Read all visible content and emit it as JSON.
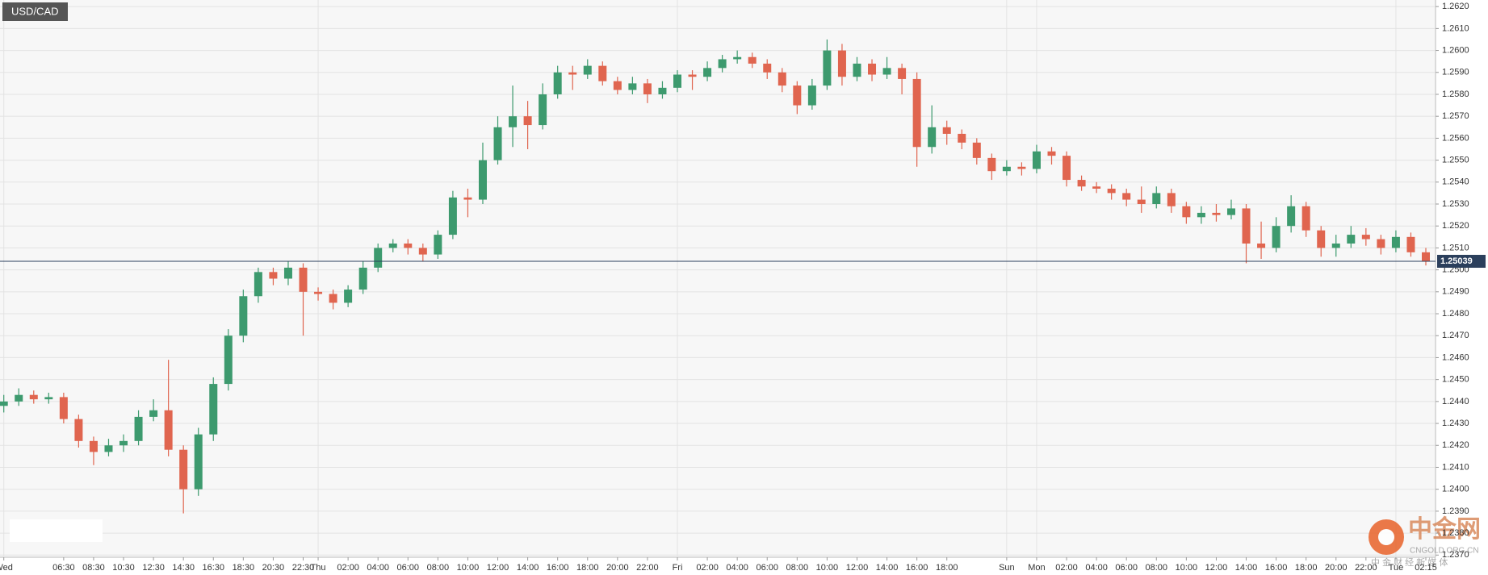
{
  "chart_data": {
    "type": "candlestick",
    "title": "USD/CAD",
    "categories": [
      "Wed",
      null,
      null,
      null,
      "06:30",
      null,
      "08:30",
      null,
      "10:30",
      null,
      "12:30",
      null,
      "14:30",
      null,
      "16:30",
      null,
      "18:30",
      null,
      "20:30",
      null,
      "22:30",
      "Thu",
      null,
      "02:00",
      null,
      "04:00",
      null,
      "06:00",
      null,
      "08:00",
      null,
      "10:00",
      null,
      "12:00",
      null,
      "14:00",
      null,
      "16:00",
      null,
      "18:00",
      null,
      "20:00",
      null,
      "22:00",
      null,
      "Fri",
      null,
      "02:00",
      null,
      "04:00",
      null,
      "06:00",
      null,
      "08:00",
      null,
      "10:00",
      null,
      "12:00",
      null,
      "14:00",
      null,
      "16:00",
      null,
      "18:00",
      null,
      null,
      null,
      "Sun",
      null,
      "Mon",
      null,
      "02:00",
      null,
      "04:00",
      null,
      "06:00",
      null,
      "08:00",
      null,
      "10:00",
      null,
      "12:00",
      null,
      "14:00",
      null,
      "16:00",
      null,
      "18:00",
      null,
      "20:00",
      null,
      "22:00",
      null,
      "Tue",
      null,
      "02:15"
    ],
    "open": [
      1.2438,
      1.244,
      1.2443,
      1.2441,
      1.2442,
      1.2432,
      1.2422,
      1.2417,
      1.242,
      1.2422,
      1.2433,
      1.2436,
      1.2418,
      1.24,
      1.2425,
      1.2448,
      1.247,
      1.2488,
      1.2499,
      1.2496,
      1.2501,
      1.249,
      1.2489,
      1.2485,
      1.2491,
      1.2501,
      1.251,
      1.2512,
      1.251,
      1.2507,
      1.2516,
      1.2533,
      1.2532,
      1.255,
      1.2565,
      1.257,
      1.2566,
      1.258,
      1.259,
      1.2589,
      1.2593,
      1.2586,
      1.2582,
      1.2585,
      1.258,
      1.2583,
      1.2589,
      1.2588,
      1.2592,
      1.2596,
      1.2597,
      1.2594,
      1.259,
      1.2584,
      1.2575,
      1.2584,
      1.26,
      1.2588,
      1.2594,
      1.2589,
      1.2592,
      1.2587,
      1.2556,
      1.2565,
      1.2562,
      1.2558,
      1.2551,
      1.2545,
      1.2547,
      1.2546,
      1.2554,
      1.2552,
      1.2541,
      1.2538,
      1.2537,
      1.2535,
      1.2532,
      1.253,
      1.2535,
      1.2529,
      1.2524,
      1.2526,
      1.2525,
      1.2528,
      1.2512,
      1.251,
      1.252,
      1.2529,
      1.2518,
      1.251,
      1.2512,
      1.2516,
      1.2514,
      1.251,
      1.2515,
      1.2508
    ],
    "high": [
      1.2443,
      1.2446,
      1.2445,
      1.2444,
      1.2444,
      1.2434,
      1.2424,
      1.2423,
      1.2425,
      1.2436,
      1.2441,
      1.2459,
      1.242,
      1.2428,
      1.2451,
      1.2473,
      1.2491,
      1.2501,
      1.2501,
      1.2504,
      1.2503,
      1.2492,
      1.2491,
      1.2493,
      1.2504,
      1.2512,
      1.2514,
      1.2514,
      1.2512,
      1.2518,
      1.2536,
      1.2537,
      1.2558,
      1.257,
      1.2584,
      1.2577,
      1.2585,
      1.2593,
      1.2593,
      1.2596,
      1.2595,
      1.2588,
      1.2588,
      1.2587,
      1.2586,
      1.2591,
      1.2591,
      1.2595,
      1.2598,
      1.26,
      1.2599,
      1.2596,
      1.2592,
      1.2586,
      1.2587,
      1.2605,
      1.2603,
      1.2597,
      1.2596,
      1.2597,
      1.2594,
      1.259,
      1.2575,
      1.2568,
      1.2564,
      1.256,
      1.2553,
      1.255,
      1.2549,
      1.2557,
      1.2556,
      1.2554,
      1.2543,
      1.254,
      1.2539,
      1.2537,
      1.2538,
      1.2538,
      1.2537,
      1.2531,
      1.2529,
      1.253,
      1.2532,
      1.253,
      1.2522,
      1.2524,
      1.2534,
      1.2531,
      1.252,
      1.2516,
      1.252,
      1.2519,
      1.2516,
      1.2518,
      1.2517,
      1.251
    ],
    "low": [
      1.2435,
      1.2438,
      1.2439,
      1.2439,
      1.243,
      1.2419,
      1.2411,
      1.2415,
      1.2417,
      1.242,
      1.2431,
      1.2415,
      1.2389,
      1.2397,
      1.2422,
      1.2445,
      1.2467,
      1.2485,
      1.2493,
      1.2493,
      1.247,
      1.2486,
      1.2482,
      1.2483,
      1.2489,
      1.2499,
      1.2508,
      1.2507,
      1.2504,
      1.2505,
      1.2514,
      1.2524,
      1.253,
      1.2548,
      1.2556,
      1.2555,
      1.2564,
      1.2578,
      1.2582,
      1.2587,
      1.2584,
      1.258,
      1.258,
      1.2576,
      1.2578,
      1.2581,
      1.2582,
      1.2586,
      1.259,
      1.2594,
      1.2592,
      1.2587,
      1.2581,
      1.2571,
      1.2573,
      1.2582,
      1.2584,
      1.2586,
      1.2586,
      1.2587,
      1.258,
      1.2547,
      1.2553,
      1.2557,
      1.2555,
      1.2548,
      1.2541,
      1.2543,
      1.2543,
      1.2544,
      1.2548,
      1.2538,
      1.2536,
      1.2535,
      1.2532,
      1.2529,
      1.2526,
      1.2528,
      1.2526,
      1.2521,
      1.2521,
      1.2522,
      1.2523,
      1.2503,
      1.2505,
      1.2508,
      1.2517,
      1.2515,
      1.2506,
      1.2506,
      1.251,
      1.2511,
      1.2507,
      1.2508,
      1.2506,
      1.2502
    ],
    "close": [
      1.244,
      1.2443,
      1.2441,
      1.2442,
      1.2432,
      1.2422,
      1.2417,
      1.242,
      1.2422,
      1.2433,
      1.2436,
      1.2418,
      1.24,
      1.2425,
      1.2448,
      1.247,
      1.2488,
      1.2499,
      1.2496,
      1.2501,
      1.249,
      1.2489,
      1.2485,
      1.2491,
      1.2501,
      1.251,
      1.2512,
      1.251,
      1.2507,
      1.2516,
      1.2533,
      1.2532,
      1.255,
      1.2565,
      1.257,
      1.2566,
      1.258,
      1.259,
      1.2589,
      1.2593,
      1.2586,
      1.2582,
      1.2585,
      1.258,
      1.2583,
      1.2589,
      1.2588,
      1.2592,
      1.2596,
      1.2597,
      1.2594,
      1.259,
      1.2584,
      1.2575,
      1.2584,
      1.26,
      1.2588,
      1.2594,
      1.2589,
      1.2592,
      1.2587,
      1.2556,
      1.2565,
      1.2562,
      1.2558,
      1.2551,
      1.2545,
      1.2547,
      1.2546,
      1.2554,
      1.2552,
      1.2541,
      1.2538,
      1.2537,
      1.2535,
      1.2532,
      1.253,
      1.2535,
      1.2529,
      1.2524,
      1.2526,
      1.2525,
      1.2528,
      1.2512,
      1.251,
      1.252,
      1.2529,
      1.2518,
      1.251,
      1.2512,
      1.2516,
      1.2514,
      1.251,
      1.2515,
      1.2508,
      1.2504
    ],
    "up_color": "#3d9a6e",
    "down_color": "#e0654f",
    "current_price": 1.25039,
    "ylim": [
      1.2369,
      1.2623
    ],
    "yticks": [
      {
        "value": 1.237,
        "label": "1.2370"
      },
      {
        "value": 1.238,
        "label": "1.2380"
      },
      {
        "value": 1.239,
        "label": "1.2390"
      },
      {
        "value": 1.24,
        "label": "1.2400"
      },
      {
        "value": 1.241,
        "label": "1.2410"
      },
      {
        "value": 1.242,
        "label": "1.2420"
      },
      {
        "value": 1.243,
        "label": "1.2430"
      },
      {
        "value": 1.244,
        "label": "1.2440"
      },
      {
        "value": 1.245,
        "label": "1.2450"
      },
      {
        "value": 1.246,
        "label": "1.2460"
      },
      {
        "value": 1.247,
        "label": "1.2470"
      },
      {
        "value": 1.248,
        "label": "1.2480"
      },
      {
        "value": 1.249,
        "label": "1.2490"
      },
      {
        "value": 1.25,
        "label": "1.2500"
      },
      {
        "value": 1.251,
        "label": "1.2510"
      },
      {
        "value": 1.252,
        "label": "1.2520"
      },
      {
        "value": 1.253,
        "label": "1.2530"
      },
      {
        "value": 1.254,
        "label": "1.2540"
      },
      {
        "value": 1.255,
        "label": "1.2550"
      },
      {
        "value": 1.256,
        "label": "1.2560"
      },
      {
        "value": 1.257,
        "label": "1.2570"
      },
      {
        "value": 1.258,
        "label": "1.2580"
      },
      {
        "value": 1.259,
        "label": "1.2590"
      },
      {
        "value": 1.26,
        "label": "1.2600"
      },
      {
        "value": 1.261,
        "label": "1.2610"
      },
      {
        "value": 1.262,
        "label": "1.2620"
      }
    ],
    "grid": true
  },
  "watermark": {
    "brand": "中金网",
    "domain": "CNGOLD.ORG.CN",
    "slogan": "中 金 财 经 新 媒 体"
  }
}
